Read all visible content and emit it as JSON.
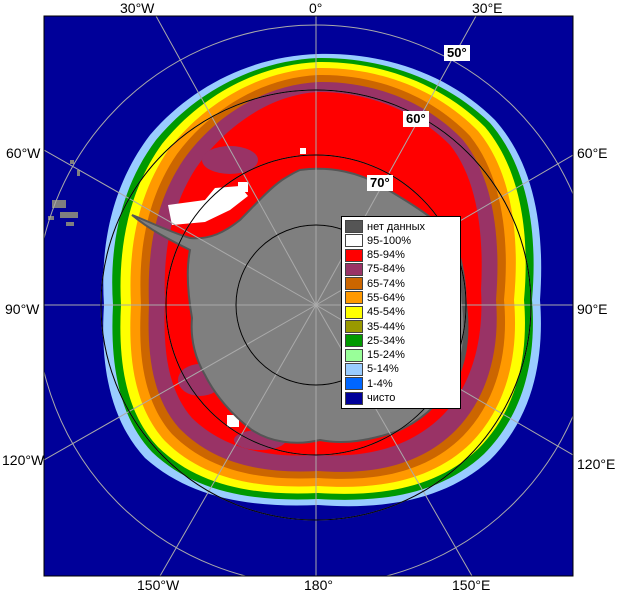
{
  "longitude_labels": {
    "w30": "30°W",
    "zero": "0°",
    "e30": "30°E",
    "w60": "60°W",
    "e60": "60°E",
    "w90": "90°W",
    "e90": "90°E",
    "w120": "120°W",
    "e120": "120°E",
    "w150": "150°W",
    "d180": "180°",
    "e150": "150°E"
  },
  "latitude_labels": {
    "lat50": "50°",
    "lat60": "60°",
    "lat70": "70°"
  },
  "legend": {
    "items": [
      {
        "label": "нет данных",
        "color": "#555555"
      },
      {
        "label": "95-100%",
        "color": "#ffffff"
      },
      {
        "label": "85-94%",
        "color": "#ff0000"
      },
      {
        "label": "75-84%",
        "color": "#993366"
      },
      {
        "label": "65-74%",
        "color": "#cc6600"
      },
      {
        "label": "55-64%",
        "color": "#ff9900"
      },
      {
        "label": "45-54%",
        "color": "#ffff00"
      },
      {
        "label": "35-44%",
        "color": "#999900"
      },
      {
        "label": "25-34%",
        "color": "#009900"
      },
      {
        "label": "15-24%",
        "color": "#99ff99"
      },
      {
        "label": "5-14%",
        "color": "#99ccff"
      },
      {
        "label": "1-4%",
        "color": "#0066ff"
      },
      {
        "label": "чисто",
        "color": "#000099"
      }
    ]
  },
  "colors": {
    "ocean": "#000099",
    "land": "#7f7f7f",
    "no_data": "#555555",
    "grid": "#aaaaaa"
  }
}
